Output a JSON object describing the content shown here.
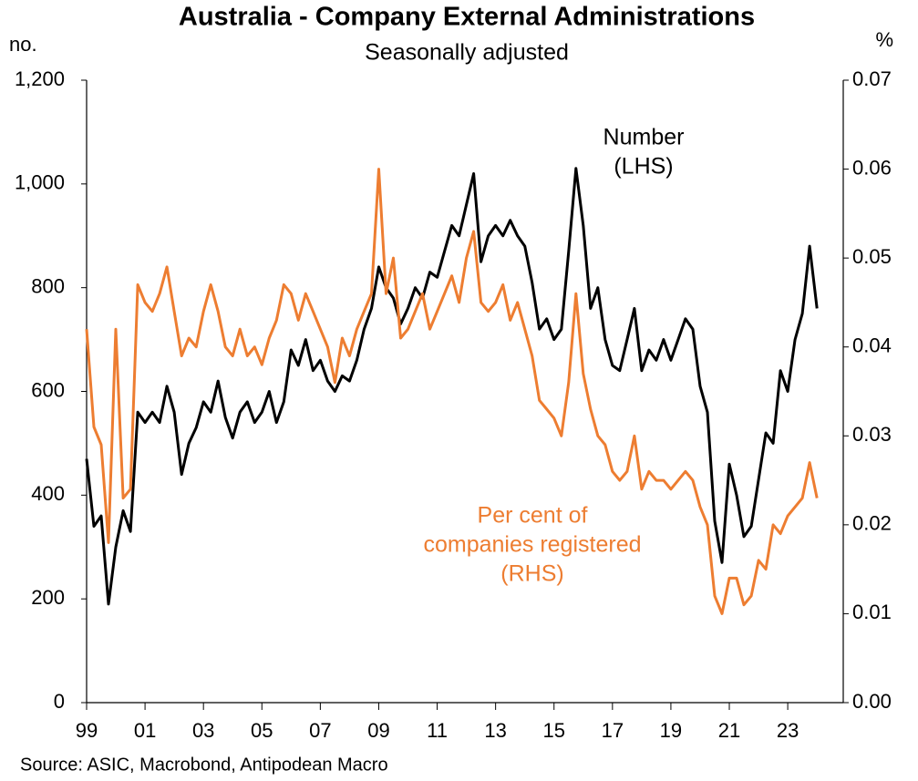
{
  "chart_data": {
    "type": "line",
    "title": "Australia - Company External Administrations",
    "subtitle": "Seasonally adjusted",
    "y_label": "no.",
    "y2_label": "%",
    "source": "Source: ASIC, Macrobond, Antipodean Macro",
    "annotations": [
      {
        "lines": [
          "Number",
          "(LHS)"
        ],
        "color": "#000000"
      },
      {
        "lines": [
          "Per cent of",
          "companies registered",
          "(RHS)"
        ],
        "color": "#ed7d31"
      }
    ],
    "x": [
      1999,
      1999.25,
      1999.5,
      1999.75,
      2000,
      2000.25,
      2000.5,
      2000.75,
      2001,
      2001.25,
      2001.5,
      2001.75,
      2002,
      2002.25,
      2002.5,
      2002.75,
      2003,
      2003.25,
      2003.5,
      2003.75,
      2004,
      2004.25,
      2004.5,
      2004.75,
      2005,
      2005.25,
      2005.5,
      2005.75,
      2006,
      2006.25,
      2006.5,
      2006.75,
      2007,
      2007.25,
      2007.5,
      2007.75,
      2008,
      2008.25,
      2008.5,
      2008.75,
      2009,
      2009.25,
      2009.5,
      2009.75,
      2010,
      2010.25,
      2010.5,
      2010.75,
      2011,
      2011.25,
      2011.5,
      2011.75,
      2012,
      2012.25,
      2012.5,
      2012.75,
      2013,
      2013.25,
      2013.5,
      2013.75,
      2014,
      2014.25,
      2014.5,
      2014.75,
      2015,
      2015.25,
      2015.5,
      2015.75,
      2016,
      2016.25,
      2016.5,
      2016.75,
      2017,
      2017.25,
      2017.5,
      2017.75,
      2018,
      2018.25,
      2018.5,
      2018.75,
      2019,
      2019.25,
      2019.5,
      2019.75,
      2020,
      2020.25,
      2020.5,
      2020.75,
      2021,
      2021.25,
      2021.5,
      2021.75,
      2022,
      2022.25,
      2022.5,
      2022.75,
      2023,
      2023.25,
      2023.5,
      2023.75,
      2024
    ],
    "series": [
      {
        "name": "Number (LHS)",
        "color": "#000000",
        "axis": "y",
        "values": [
          470,
          340,
          360,
          190,
          300,
          370,
          330,
          560,
          540,
          560,
          540,
          610,
          560,
          440,
          500,
          530,
          580,
          560,
          620,
          550,
          510,
          560,
          580,
          540,
          560,
          600,
          540,
          580,
          680,
          650,
          700,
          640,
          660,
          620,
          600,
          630,
          620,
          660,
          720,
          760,
          840,
          800,
          780,
          730,
          760,
          800,
          780,
          830,
          820,
          870,
          920,
          900,
          960,
          1020,
          850,
          900,
          920,
          900,
          930,
          900,
          880,
          810,
          720,
          740,
          700,
          720,
          870,
          1030,
          920,
          760,
          800,
          700,
          650,
          640,
          700,
          760,
          640,
          680,
          660,
          700,
          660,
          700,
          740,
          720,
          610,
          560,
          350,
          270,
          460,
          400,
          320,
          340,
          430,
          520,
          500,
          640,
          600,
          700,
          750,
          880,
          760
        ]
      },
      {
        "name": "Per cent of companies registered (RHS)",
        "color": "#ed7d31",
        "axis": "y2",
        "values": [
          0.042,
          0.031,
          0.029,
          0.018,
          0.042,
          0.023,
          0.024,
          0.047,
          0.045,
          0.044,
          0.046,
          0.049,
          0.044,
          0.039,
          0.041,
          0.04,
          0.044,
          0.047,
          0.044,
          0.04,
          0.039,
          0.042,
          0.039,
          0.04,
          0.038,
          0.041,
          0.043,
          0.047,
          0.046,
          0.043,
          0.046,
          0.044,
          0.042,
          0.04,
          0.036,
          0.041,
          0.039,
          0.042,
          0.044,
          0.046,
          0.06,
          0.046,
          0.05,
          0.041,
          0.042,
          0.044,
          0.046,
          0.042,
          0.044,
          0.046,
          0.048,
          0.045,
          0.05,
          0.053,
          0.045,
          0.044,
          0.045,
          0.047,
          0.043,
          0.045,
          0.042,
          0.039,
          0.034,
          0.033,
          0.032,
          0.03,
          0.036,
          0.046,
          0.037,
          0.033,
          0.03,
          0.029,
          0.026,
          0.025,
          0.026,
          0.03,
          0.024,
          0.026,
          0.025,
          0.025,
          0.024,
          0.025,
          0.026,
          0.025,
          0.022,
          0.02,
          0.012,
          0.01,
          0.014,
          0.014,
          0.011,
          0.012,
          0.016,
          0.015,
          0.02,
          0.019,
          0.021,
          0.022,
          0.023,
          0.027,
          0.023
        ]
      }
    ],
    "xlim": [
      1999,
      2024.9
    ],
    "xticks": [
      {
        "value": 1999,
        "label": "99"
      },
      {
        "value": 2001,
        "label": "01"
      },
      {
        "value": 2003,
        "label": "03"
      },
      {
        "value": 2005,
        "label": "05"
      },
      {
        "value": 2007,
        "label": "07"
      },
      {
        "value": 2009,
        "label": "09"
      },
      {
        "value": 2011,
        "label": "11"
      },
      {
        "value": 2013,
        "label": "13"
      },
      {
        "value": 2015,
        "label": "15"
      },
      {
        "value": 2017,
        "label": "17"
      },
      {
        "value": 2019,
        "label": "19"
      },
      {
        "value": 2021,
        "label": "21"
      },
      {
        "value": 2023,
        "label": "23"
      }
    ],
    "ylim": [
      0,
      1200
    ],
    "yticks": [
      0,
      200,
      400,
      600,
      800,
      {
        "value": 1000,
        "label": "1,000"
      },
      {
        "value": 1200,
        "label": "1,200"
      }
    ],
    "y2lim": [
      0,
      0.07
    ],
    "y2ticks": [
      {
        "value": 0,
        "label": "0.00"
      },
      0.01,
      0.02,
      0.03,
      0.04,
      0.05,
      0.06,
      0.07
    ],
    "grid": false
  }
}
